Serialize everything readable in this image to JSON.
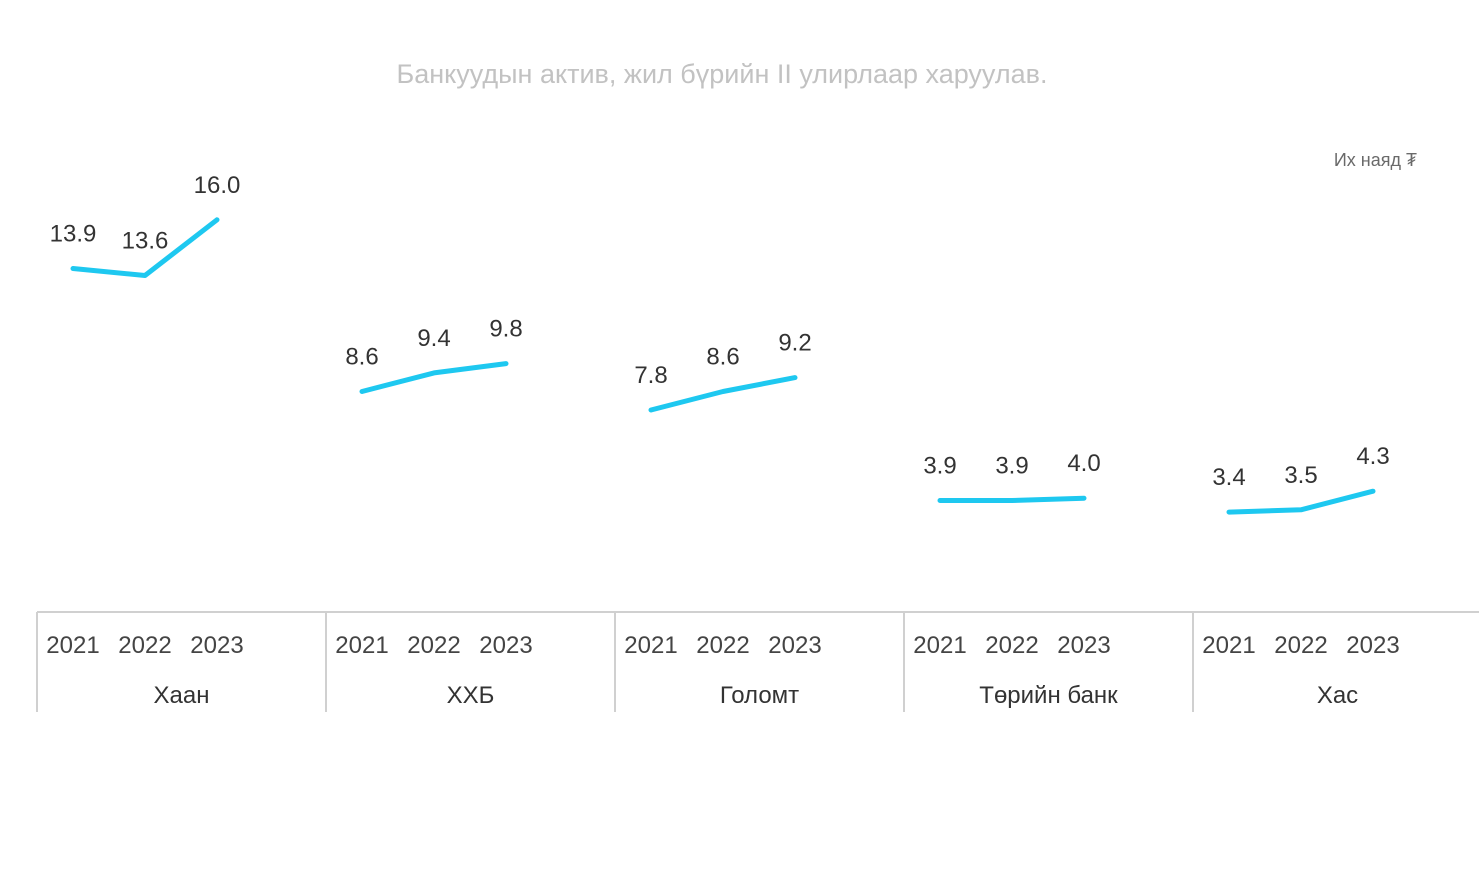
{
  "chart_data": {
    "type": "line",
    "title": "Банкуудын актив, жил бүрийн II улирлаар харуулав.",
    "unit": "Их наяд ₮",
    "categories": [
      "2021",
      "2022",
      "2023"
    ],
    "groups": [
      {
        "name": "Хаан",
        "values": [
          13.9,
          13.6,
          16.0
        ],
        "labels": [
          "13.9",
          "13.6",
          "16.0"
        ]
      },
      {
        "name": "ХХБ",
        "values": [
          8.6,
          9.4,
          9.8
        ],
        "labels": [
          "8.6",
          "9.4",
          "9.8"
        ]
      },
      {
        "name": "Голомт",
        "values": [
          7.8,
          8.6,
          9.2
        ],
        "labels": [
          "7.8",
          "8.6",
          "9.2"
        ]
      },
      {
        "name": "Төрийн банк",
        "values": [
          3.9,
          3.9,
          4.0
        ],
        "labels": [
          "3.9",
          "3.9",
          "4.0"
        ]
      },
      {
        "name": "Хас",
        "values": [
          3.4,
          3.5,
          4.3
        ],
        "labels": [
          "3.4",
          "3.5",
          "4.3"
        ]
      }
    ],
    "ylim": [
      0,
      16
    ],
    "grid": false,
    "legend": "none",
    "line_color": "#1ec8f0"
  }
}
